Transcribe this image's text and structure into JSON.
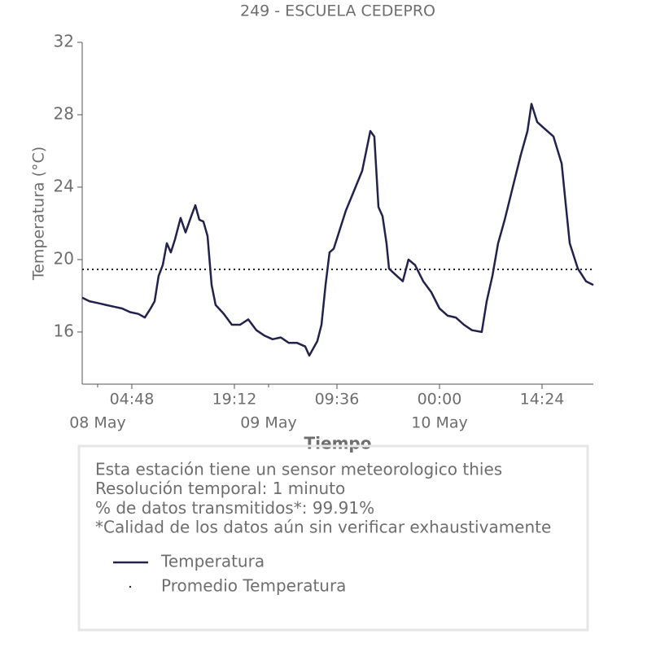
{
  "chart_data": {
    "type": "line",
    "title": "249 - ESCUELA CEDEPRO",
    "y_label": "Temperatura (°C)",
    "x_label": "Tiempo",
    "ylim": [
      13.12,
      32
    ],
    "yticks": [
      16,
      20,
      24,
      28,
      32
    ],
    "xlim": [
      "07 May 21:50",
      "10 May 21:36"
    ],
    "xticks": [
      {
        "value": "08 May 04:48",
        "label": "04:48"
      },
      {
        "value": "08 May 19:12",
        "label": "19:12"
      },
      {
        "value": "09 May 09:36",
        "label": "09:36"
      },
      {
        "value": "10 May 00:00",
        "label": "00:00"
      },
      {
        "value": "10 May 14:24",
        "label": "14:24"
      }
    ],
    "date_ticks": [
      {
        "value": "08 May 00:00",
        "label": "08 May"
      },
      {
        "value": "09 May 00:00",
        "label": "09 May"
      },
      {
        "value": "10 May 00:00",
        "label": "10 May"
      }
    ],
    "series": [
      {
        "name": "Temperatura",
        "color": "#22224a",
        "x": [
          "07 May 21:50",
          "07 May 22:51",
          "08 May 00:00",
          "08 May 01:09",
          "08 May 02:17",
          "08 May 03:26",
          "08 May 04:34",
          "08 May 05:43",
          "08 May 06:38",
          "08 May 07:26",
          "08 May 08:00",
          "08 May 08:34",
          "08 May 09:09",
          "08 May 09:43",
          "08 May 10:17",
          "08 May 10:51",
          "08 May 11:39",
          "08 May 12:21",
          "08 May 13:09",
          "08 May 13:43",
          "08 May 14:17",
          "08 May 14:51",
          "08 May 15:26",
          "08 May 16:00",
          "08 May 16:34",
          "08 May 17:43",
          "08 May 18:51",
          "08 May 20:00",
          "08 May 21:09",
          "08 May 22:17",
          "08 May 23:26",
          "09 May 00:34",
          "09 May 01:43",
          "09 May 02:51",
          "09 May 04:00",
          "09 May 05:09",
          "09 May 05:43",
          "09 May 06:51",
          "09 May 07:26",
          "09 May 08:00",
          "09 May 08:34",
          "09 May 09:09",
          "09 May 09:43",
          "09 May 10:51",
          "09 May 12:00",
          "09 May 13:09",
          "09 May 13:43",
          "09 May 14:17",
          "09 May 14:51",
          "09 May 15:26",
          "09 May 16:00",
          "09 May 16:34",
          "09 May 16:55",
          "09 May 17:43",
          "09 May 18:51",
          "09 May 19:39",
          "09 May 20:34",
          "09 May 21:43",
          "09 May 22:51",
          "10 May 00:00",
          "10 May 01:09",
          "10 May 02:17",
          "10 May 03:26",
          "10 May 04:34",
          "10 May 05:56",
          "10 May 06:38",
          "10 May 07:26",
          "10 May 08:14",
          "10 May 09:09",
          "10 May 10:17",
          "10 May 11:26",
          "10 May 12:21",
          "10 May 12:55",
          "10 May 13:43",
          "10 May 14:51",
          "10 May 16:00",
          "10 May 17:09",
          "10 May 17:43",
          "10 May 18:17",
          "10 May 19:26",
          "10 May 20:34",
          "10 May 21:36"
        ],
        "values": [
          17.9,
          17.7,
          17.6,
          17.5,
          17.4,
          17.3,
          17.1,
          17.0,
          16.8,
          17.3,
          17.7,
          19.1,
          19.7,
          20.9,
          20.4,
          21.1,
          22.3,
          21.5,
          22.4,
          23.0,
          22.2,
          22.1,
          21.3,
          18.6,
          17.5,
          17.0,
          16.4,
          16.4,
          16.7,
          16.1,
          15.8,
          15.6,
          15.7,
          15.4,
          15.4,
          15.2,
          14.7,
          15.5,
          16.4,
          18.6,
          20.4,
          20.6,
          21.3,
          22.7,
          23.8,
          24.9,
          26.0,
          27.1,
          26.8,
          22.9,
          22.4,
          20.9,
          19.5,
          19.2,
          18.8,
          20.0,
          19.7,
          18.8,
          18.2,
          17.3,
          16.9,
          16.8,
          16.4,
          16.1,
          16.0,
          17.7,
          19.1,
          20.9,
          22.2,
          24.0,
          25.8,
          27.1,
          28.6,
          27.6,
          27.2,
          26.8,
          25.3,
          23.1,
          20.9,
          19.5,
          18.8,
          18.6
        ]
      }
    ],
    "reference_lines": [
      {
        "name": "Promedio Temperatura",
        "value": 19.46,
        "color": "#22224a",
        "style": "dotted"
      }
    ],
    "notes": [
      "Esta estación tiene un sensor meteorologico thies",
      "Resolución temporal: 1 minuto",
      "% de datos transmitidos*: 99.91%",
      "*Calidad de los datos aún sin verificar exhaustivamente"
    ]
  }
}
